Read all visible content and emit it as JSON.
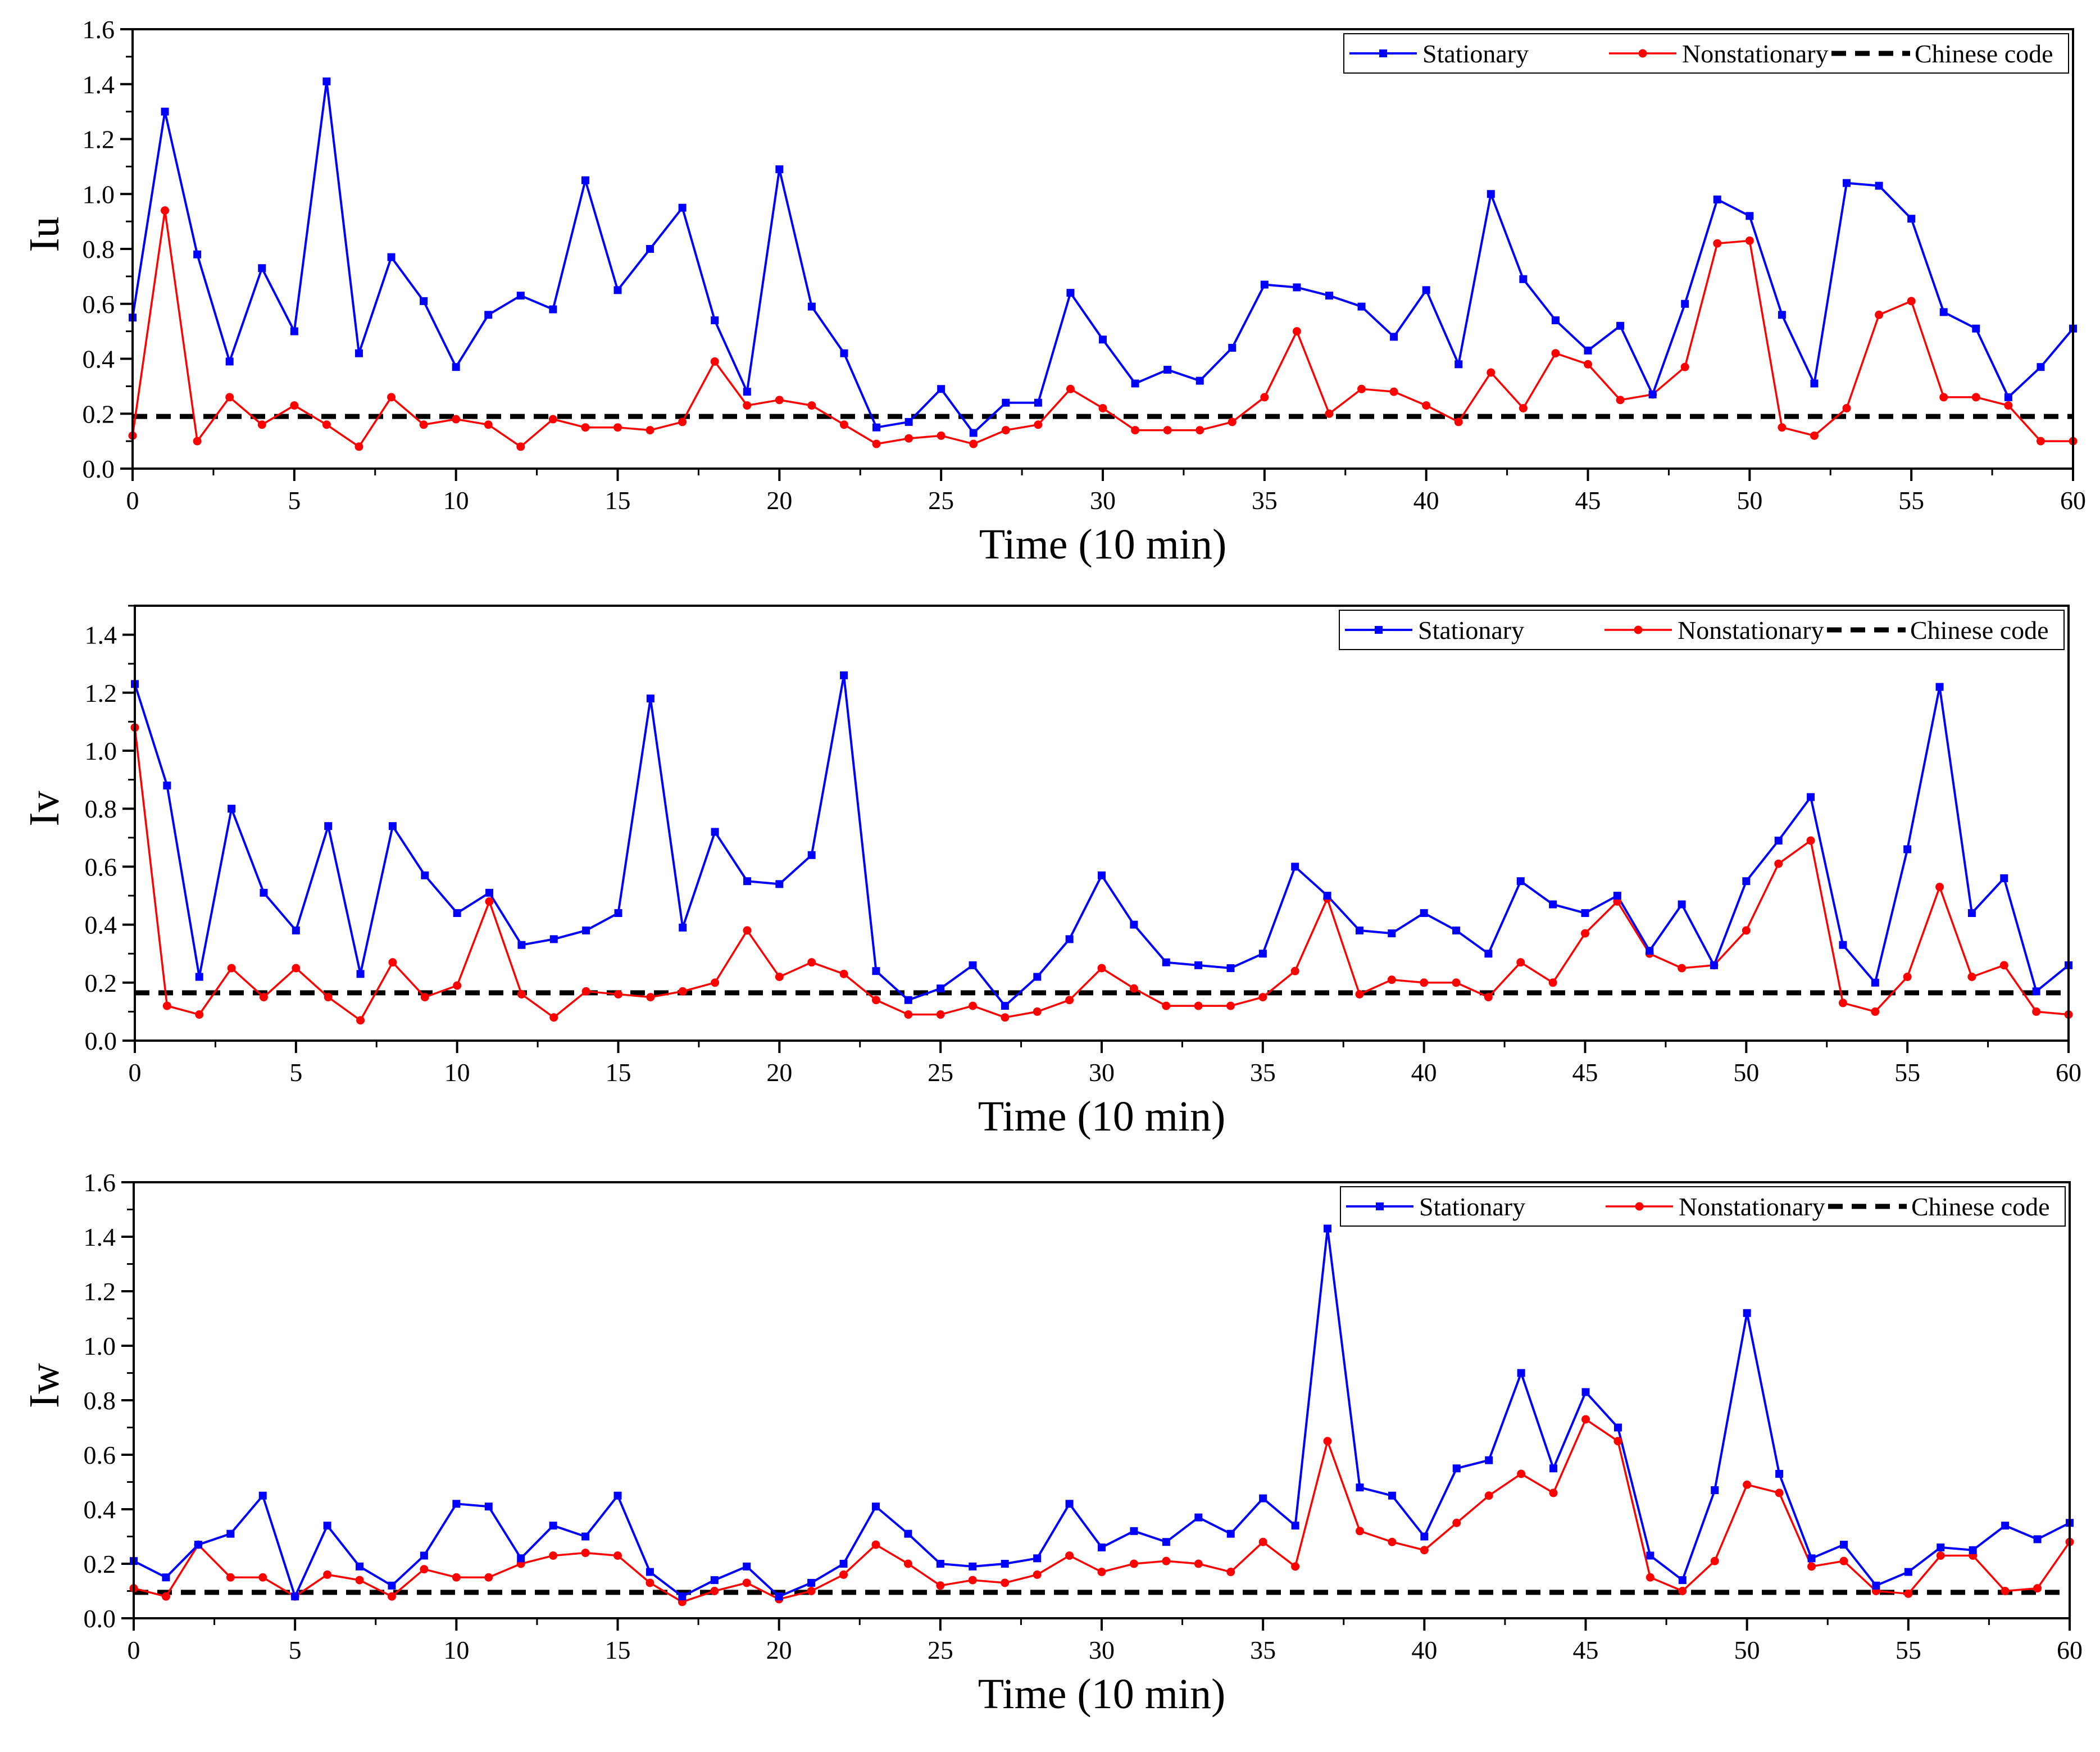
{
  "figure": {
    "title": ""
  },
  "colors": {
    "stationary": "#0000ff",
    "nonstationary": "#ff0000",
    "code": "#000000"
  },
  "legend": {
    "stationary": "Stationary",
    "nonstationary": "Nonstationary",
    "code": "Chinese code"
  },
  "chart_data": [
    {
      "type": "line",
      "id": "iu",
      "title": "",
      "xlabel": "Time (10 min)",
      "ylabel": "Iu",
      "xlim": [
        0,
        60
      ],
      "ylim": [
        0,
        1.6
      ],
      "xticks": [
        0,
        5,
        10,
        15,
        20,
        25,
        30,
        35,
        40,
        45,
        50,
        55,
        60
      ],
      "yticks": [
        0.0,
        0.2,
        0.4,
        0.6,
        0.8,
        1.0,
        1.2,
        1.4,
        1.6
      ],
      "ytick_labels": [
        "0.0",
        "0.2",
        "0.4",
        "0.6",
        "0.8",
        "1.0",
        "1.2",
        "1.4",
        "1.6"
      ],
      "legend_position": "top-right",
      "x": [
        0,
        1,
        2,
        3,
        4,
        5,
        6,
        7,
        8,
        9,
        10,
        11,
        12,
        13,
        14,
        15,
        16,
        17,
        18,
        19,
        20,
        21,
        22,
        23,
        24,
        25,
        26,
        27,
        28,
        29,
        30,
        31,
        32,
        33,
        34,
        35,
        36,
        37,
        38,
        39,
        40,
        41,
        42,
        43,
        44,
        45,
        46,
        47,
        48,
        49,
        50,
        51,
        52,
        53,
        54,
        55,
        56,
        57,
        58,
        59,
        60
      ],
      "series": [
        {
          "name": "Stationary",
          "values": [
            0.55,
            1.3,
            0.78,
            0.39,
            0.73,
            0.5,
            1.41,
            0.42,
            0.77,
            0.61,
            0.37,
            0.56,
            0.63,
            0.58,
            1.05,
            0.65,
            0.8,
            0.95,
            0.54,
            0.28,
            1.09,
            0.59,
            0.42,
            0.15,
            0.17,
            0.29,
            0.13,
            0.24,
            0.24,
            0.64,
            0.47,
            0.31,
            0.36,
            0.32,
            0.44,
            0.67,
            0.66,
            0.63,
            0.59,
            0.48,
            0.65,
            0.38,
            1.0,
            0.69,
            0.54,
            0.43,
            0.52,
            0.27,
            0.6,
            0.98,
            0.92,
            0.56,
            0.31,
            1.04,
            1.03,
            0.91,
            0.57,
            0.51,
            0.26,
            0.37,
            0.51
          ]
        },
        {
          "name": "Nonstationary",
          "values": [
            0.12,
            0.94,
            0.1,
            0.26,
            0.16,
            0.23,
            0.16,
            0.08,
            0.26,
            0.16,
            0.18,
            0.16,
            0.08,
            0.18,
            0.15,
            0.15,
            0.14,
            0.17,
            0.39,
            0.23,
            0.25,
            0.23,
            0.16,
            0.09,
            0.11,
            0.12,
            0.09,
            0.14,
            0.16,
            0.29,
            0.22,
            0.14,
            0.14,
            0.14,
            0.17,
            0.26,
            0.5,
            0.2,
            0.29,
            0.28,
            0.23,
            0.17,
            0.35,
            0.22,
            0.42,
            0.38,
            0.25,
            0.27,
            0.37,
            0.82,
            0.83,
            0.15,
            0.12,
            0.22,
            0.56,
            0.61,
            0.26,
            0.26,
            0.23,
            0.1,
            0.1
          ]
        },
        {
          "name": "Chinese code",
          "values": [
            0.19,
            0.19
          ],
          "x": [
            0,
            60
          ]
        }
      ]
    },
    {
      "type": "line",
      "id": "iv",
      "title": "",
      "xlabel": "Time (10 min)",
      "ylabel": "Iv",
      "xlim": [
        0,
        60
      ],
      "ylim": [
        0,
        1.5
      ],
      "xticks": [
        0,
        5,
        10,
        15,
        20,
        25,
        30,
        35,
        40,
        45,
        50,
        55,
        60
      ],
      "yticks": [
        0.0,
        0.2,
        0.4,
        0.6,
        0.8,
        1.0,
        1.2,
        1.4
      ],
      "ytick_labels": [
        "0.0",
        "0.2",
        "0.4",
        "0.6",
        "0.8",
        "1.0",
        "1.2",
        "1.4"
      ],
      "legend_position": "top-right",
      "x": [
        0,
        1,
        2,
        3,
        4,
        5,
        6,
        7,
        8,
        9,
        10,
        11,
        12,
        13,
        14,
        15,
        16,
        17,
        18,
        19,
        20,
        21,
        22,
        23,
        24,
        25,
        26,
        27,
        28,
        29,
        30,
        31,
        32,
        33,
        34,
        35,
        36,
        37,
        38,
        39,
        40,
        41,
        42,
        43,
        44,
        45,
        46,
        47,
        48,
        49,
        50,
        51,
        52,
        53,
        54,
        55,
        56,
        57,
        58,
        59,
        60
      ],
      "series": [
        {
          "name": "Stationary",
          "values": [
            1.23,
            0.88,
            0.22,
            0.8,
            0.51,
            0.38,
            0.74,
            0.23,
            0.74,
            0.57,
            0.44,
            0.51,
            0.33,
            0.35,
            0.38,
            0.44,
            1.18,
            0.39,
            0.72,
            0.55,
            0.54,
            0.64,
            1.26,
            0.24,
            0.14,
            0.18,
            0.26,
            0.12,
            0.22,
            0.35,
            0.57,
            0.4,
            0.27,
            0.26,
            0.25,
            0.3,
            0.6,
            0.5,
            0.38,
            0.37,
            0.44,
            0.38,
            0.3,
            0.55,
            0.47,
            0.44,
            0.5,
            0.31,
            0.47,
            0.26,
            0.55,
            0.69,
            0.84,
            0.33,
            0.2,
            0.66,
            1.22,
            0.44,
            0.56,
            0.17,
            0.26
          ]
        },
        {
          "name": "Nonstationary",
          "values": [
            1.08,
            0.12,
            0.09,
            0.25,
            0.15,
            0.25,
            0.15,
            0.07,
            0.27,
            0.15,
            0.19,
            0.48,
            0.16,
            0.08,
            0.17,
            0.16,
            0.15,
            0.17,
            0.2,
            0.38,
            0.22,
            0.27,
            0.23,
            0.14,
            0.09,
            0.09,
            0.12,
            0.08,
            0.1,
            0.14,
            0.25,
            0.18,
            0.12,
            0.12,
            0.12,
            0.15,
            0.24,
            0.49,
            0.16,
            0.21,
            0.2,
            0.2,
            0.15,
            0.27,
            0.2,
            0.37,
            0.48,
            0.3,
            0.25,
            0.26,
            0.38,
            0.61,
            0.69,
            0.13,
            0.1,
            0.22,
            0.53,
            0.22,
            0.26,
            0.1,
            0.09
          ]
        },
        {
          "name": "Chinese code",
          "values": [
            0.165,
            0.165
          ],
          "x": [
            0,
            60
          ]
        }
      ]
    },
    {
      "type": "line",
      "id": "iw",
      "title": "",
      "xlabel": "Time (10 min)",
      "ylabel": "Iw",
      "xlim": [
        0,
        60
      ],
      "ylim": [
        0,
        1.6
      ],
      "xticks": [
        0,
        5,
        10,
        15,
        20,
        25,
        30,
        35,
        40,
        45,
        50,
        55,
        60
      ],
      "yticks": [
        0.0,
        0.2,
        0.4,
        0.6,
        0.8,
        1.0,
        1.2,
        1.4,
        1.6
      ],
      "ytick_labels": [
        "0.0",
        "0.2",
        "0.4",
        "0.6",
        "0.8",
        "1.0",
        "1.2",
        "1.4",
        "1.6"
      ],
      "legend_position": "top-right",
      "x": [
        0,
        1,
        2,
        3,
        4,
        5,
        6,
        7,
        8,
        9,
        10,
        11,
        12,
        13,
        14,
        15,
        16,
        17,
        18,
        19,
        20,
        21,
        22,
        23,
        24,
        25,
        26,
        27,
        28,
        29,
        30,
        31,
        32,
        33,
        34,
        35,
        36,
        37,
        38,
        39,
        40,
        41,
        42,
        43,
        44,
        45,
        46,
        47,
        48,
        49,
        50,
        51,
        52,
        53,
        54,
        55,
        56,
        57,
        58,
        59,
        60
      ],
      "series": [
        {
          "name": "Stationary",
          "values": [
            0.21,
            0.15,
            0.27,
            0.31,
            0.45,
            0.08,
            0.34,
            0.19,
            0.12,
            0.23,
            0.42,
            0.41,
            0.22,
            0.34,
            0.3,
            0.45,
            0.17,
            0.08,
            0.14,
            0.19,
            0.08,
            0.13,
            0.2,
            0.41,
            0.31,
            0.2,
            0.19,
            0.2,
            0.22,
            0.42,
            0.26,
            0.32,
            0.28,
            0.37,
            0.31,
            0.44,
            0.34,
            1.43,
            0.48,
            0.45,
            0.3,
            0.55,
            0.58,
            0.9,
            0.55,
            0.83,
            0.7,
            0.23,
            0.14,
            0.47,
            1.12,
            0.53,
            0.22,
            0.27,
            0.12,
            0.17,
            0.26,
            0.25,
            0.34,
            0.29,
            0.35
          ]
        },
        {
          "name": "Nonstationary",
          "values": [
            0.11,
            0.08,
            0.27,
            0.15,
            0.15,
            0.08,
            0.16,
            0.14,
            0.08,
            0.18,
            0.15,
            0.15,
            0.2,
            0.23,
            0.24,
            0.23,
            0.13,
            0.06,
            0.1,
            0.13,
            0.07,
            0.1,
            0.16,
            0.27,
            0.2,
            0.12,
            0.14,
            0.13,
            0.16,
            0.23,
            0.17,
            0.2,
            0.21,
            0.2,
            0.17,
            0.28,
            0.19,
            0.65,
            0.32,
            0.28,
            0.25,
            0.35,
            0.45,
            0.53,
            0.46,
            0.73,
            0.65,
            0.15,
            0.1,
            0.21,
            0.49,
            0.46,
            0.19,
            0.21,
            0.1,
            0.09,
            0.23,
            0.23,
            0.1,
            0.11,
            0.28
          ]
        },
        {
          "name": "Chinese code",
          "values": [
            0.095,
            0.095
          ],
          "x": [
            0,
            60
          ]
        }
      ]
    }
  ]
}
